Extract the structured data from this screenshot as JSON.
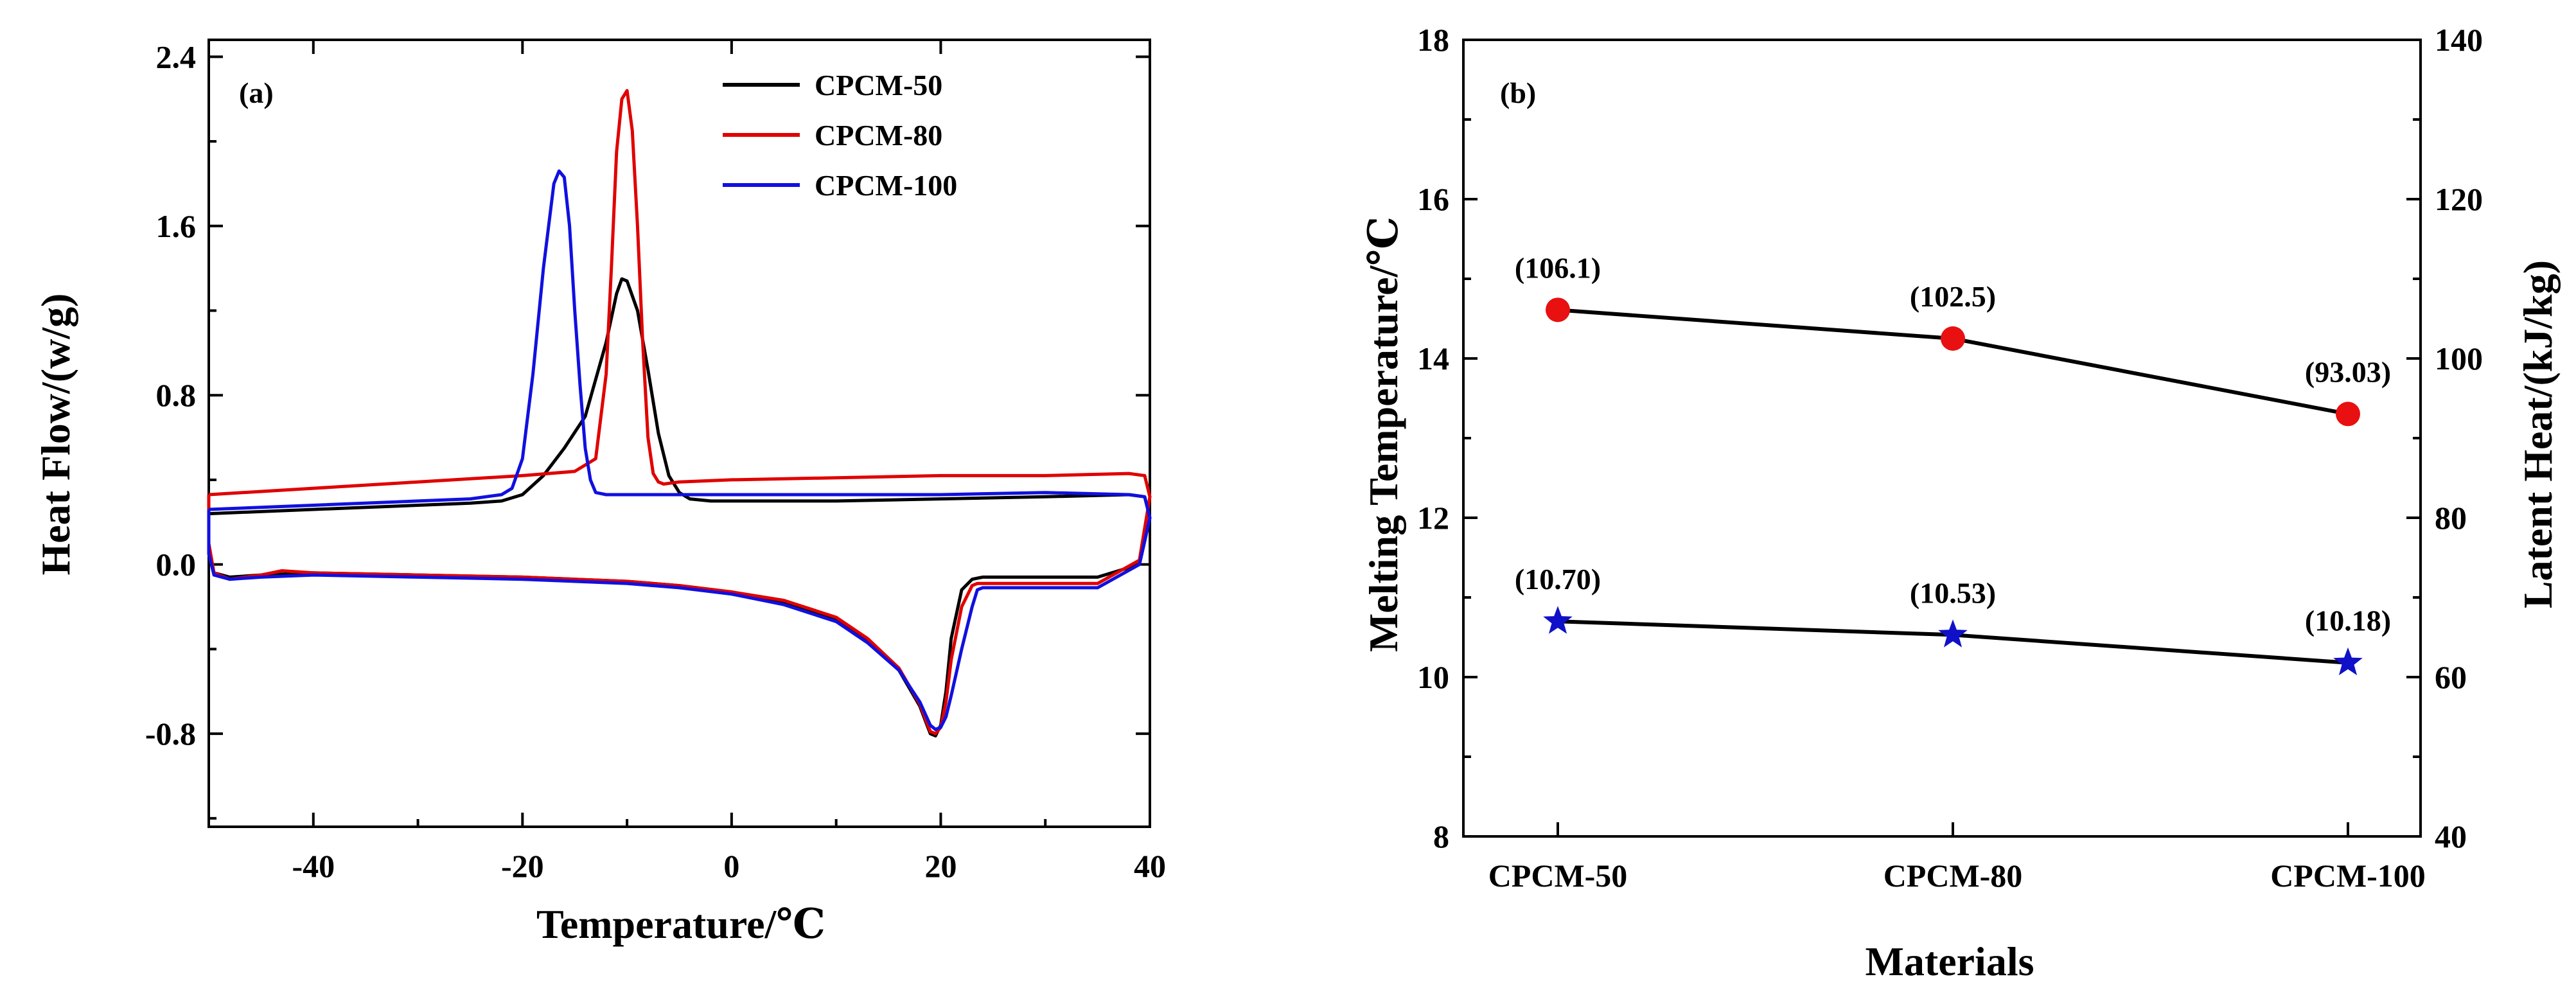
{
  "chart_data": [
    {
      "panel": "(a)",
      "type": "line",
      "xlabel": "Temperature/℃",
      "ylabel": "Heat Flow/(w/g)",
      "xlim": [
        -50,
        40
      ],
      "ylim": [
        -1.24,
        2.48
      ],
      "xticks": [
        -40,
        -20,
        0,
        20,
        40
      ],
      "xtick_labels": [
        "-40",
        "-20",
        "0",
        "20",
        "40"
      ],
      "yticks": [
        -0.8,
        0.0,
        0.8,
        1.6,
        2.4
      ],
      "ytick_labels": [
        "-0.8",
        "0.0",
        "0.8",
        "1.6",
        "2.4"
      ],
      "legend_position": "top-right",
      "series": [
        {
          "name": "CPCM-50",
          "color": "#000000",
          "x": [
            -50,
            -40,
            -30,
            -25,
            -22,
            -20,
            -18,
            -16,
            -14,
            -12,
            -11,
            -10.5,
            -10,
            -9,
            -8,
            -7,
            -6,
            -5,
            -4,
            -2,
            0,
            10,
            20,
            30,
            38,
            39.5,
            40,
            39,
            35,
            30,
            24,
            23,
            22,
            21,
            20.5,
            20,
            19.5,
            19,
            18,
            16,
            13,
            10,
            5,
            0,
            -5,
            -10,
            -20,
            -30,
            -40,
            -45,
            -48,
            -49.5,
            -50,
            -50
          ],
          "y": [
            0.24,
            0.26,
            0.28,
            0.29,
            0.3,
            0.33,
            0.42,
            0.55,
            0.7,
            1.05,
            1.28,
            1.35,
            1.34,
            1.2,
            0.92,
            0.62,
            0.42,
            0.34,
            0.31,
            0.3,
            0.3,
            0.3,
            0.31,
            0.32,
            0.33,
            0.32,
            0.22,
            0.0,
            -0.06,
            -0.06,
            -0.06,
            -0.07,
            -0.12,
            -0.35,
            -0.6,
            -0.76,
            -0.81,
            -0.8,
            -0.67,
            -0.5,
            -0.36,
            -0.26,
            -0.18,
            -0.13,
            -0.1,
            -0.08,
            -0.06,
            -0.05,
            -0.04,
            -0.05,
            -0.06,
            -0.04,
            0.05,
            0.24
          ]
        },
        {
          "name": "CPCM-80",
          "color": "#e00000",
          "x": [
            -50,
            -40,
            -30,
            -20,
            -15,
            -13,
            -12,
            -11.5,
            -11,
            -10.5,
            -10,
            -9.5,
            -9,
            -8.5,
            -8,
            -7.5,
            -7,
            -6.5,
            -5,
            0,
            10,
            20,
            30,
            38,
            39.5,
            40,
            39,
            35,
            30,
            23.5,
            23,
            22,
            21,
            20.5,
            20,
            19.5,
            19,
            18,
            16,
            13,
            10,
            5,
            0,
            -5,
            -10,
            -20,
            -30,
            -40,
            -43,
            -45,
            -48,
            -49.5,
            -50,
            -50
          ],
          "y": [
            0.33,
            0.36,
            0.39,
            0.42,
            0.44,
            0.5,
            0.9,
            1.4,
            1.95,
            2.2,
            2.24,
            2.05,
            1.6,
            1.05,
            0.6,
            0.43,
            0.39,
            0.38,
            0.39,
            0.4,
            0.41,
            0.42,
            0.42,
            0.43,
            0.42,
            0.32,
            0.02,
            -0.09,
            -0.09,
            -0.09,
            -0.1,
            -0.2,
            -0.45,
            -0.65,
            -0.77,
            -0.8,
            -0.79,
            -0.66,
            -0.49,
            -0.35,
            -0.25,
            -0.17,
            -0.13,
            -0.1,
            -0.08,
            -0.06,
            -0.05,
            -0.04,
            -0.03,
            -0.05,
            -0.07,
            -0.04,
            0.1,
            0.33
          ]
        },
        {
          "name": "CPCM-100",
          "color": "#1010e0",
          "x": [
            -50,
            -40,
            -30,
            -25,
            -22,
            -21,
            -20,
            -19,
            -18,
            -17,
            -16.5,
            -16,
            -15.5,
            -15,
            -14.5,
            -14,
            -13.5,
            -13,
            -12,
            -10,
            -5,
            0,
            10,
            20,
            30,
            38,
            39.5,
            40,
            39,
            35,
            30,
            24,
            23.5,
            23,
            22,
            21,
            20.5,
            20,
            19.5,
            19,
            18,
            16,
            13,
            10,
            5,
            0,
            -5,
            -10,
            -20,
            -30,
            -40,
            -45,
            -48,
            -49.5,
            -50,
            -50
          ],
          "y": [
            0.26,
            0.28,
            0.3,
            0.31,
            0.33,
            0.36,
            0.5,
            0.9,
            1.4,
            1.8,
            1.86,
            1.83,
            1.6,
            1.2,
            0.85,
            0.55,
            0.4,
            0.34,
            0.33,
            0.33,
            0.33,
            0.33,
            0.33,
            0.33,
            0.34,
            0.33,
            0.32,
            0.22,
            0.0,
            -0.11,
            -0.11,
            -0.11,
            -0.12,
            -0.2,
            -0.4,
            -0.62,
            -0.72,
            -0.77,
            -0.78,
            -0.76,
            -0.65,
            -0.5,
            -0.37,
            -0.27,
            -0.19,
            -0.14,
            -0.11,
            -0.09,
            -0.07,
            -0.06,
            -0.05,
            -0.06,
            -0.07,
            -0.05,
            0.05,
            0.26
          ]
        }
      ]
    },
    {
      "panel": "(b)",
      "type": "line",
      "xlabel": "Materials",
      "ylabel": "Melting Temperature/℃",
      "ylabel_right": "Latent Heat/(kJ/kg)",
      "categories": [
        "CPCM-50",
        "CPCM-80",
        "CPCM-100"
      ],
      "ylim": [
        8,
        18
      ],
      "ylim_right": [
        40,
        140
      ],
      "yticks": [
        8,
        10,
        12,
        14,
        16,
        18
      ],
      "ytick_labels": [
        "8",
        "10",
        "12",
        "14",
        "16",
        "18"
      ],
      "yticks_right": [
        40,
        60,
        80,
        100,
        120,
        140
      ],
      "ytick_labels_right": [
        "40",
        "60",
        "80",
        "100",
        "120",
        "140"
      ],
      "series": [
        {
          "name": "Latent Heat",
          "axis": "right",
          "marker": "circle",
          "marker_color": "#e81010",
          "line_color": "#000000",
          "values": [
            106.1,
            102.5,
            93.03
          ],
          "labels": [
            "(106.1)",
            "(102.5)",
            "(93.03)"
          ]
        },
        {
          "name": "Melting Temperature",
          "axis": "left",
          "marker": "star",
          "marker_color": "#1010c8",
          "line_color": "#000000",
          "values": [
            10.7,
            10.53,
            10.18
          ],
          "labels": [
            "(10.70)",
            "(10.53)",
            "(10.18)"
          ]
        }
      ]
    }
  ]
}
